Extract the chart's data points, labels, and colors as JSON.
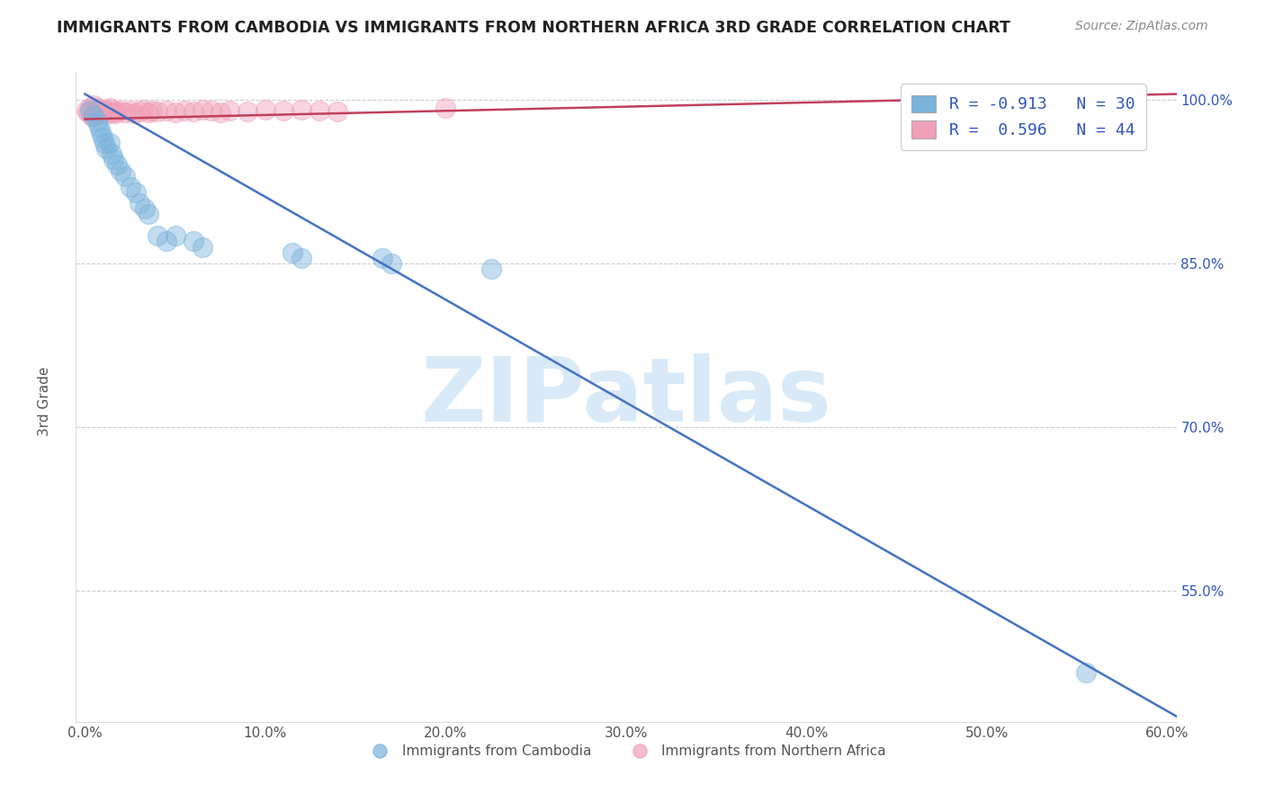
{
  "title": "IMMIGRANTS FROM CAMBODIA VS IMMIGRANTS FROM NORTHERN AFRICA 3RD GRADE CORRELATION CHART",
  "source_text": "Source: ZipAtlas.com",
  "ylabel": "3rd Grade",
  "watermark": "ZIPatlas",
  "xlim": [
    -0.005,
    0.605
  ],
  "ylim": [
    0.43,
    1.025
  ],
  "xtick_labels": [
    "0.0%",
    "10.0%",
    "20.0%",
    "30.0%",
    "40.0%",
    "50.0%",
    "60.0%"
  ],
  "xtick_values": [
    0.0,
    0.1,
    0.2,
    0.3,
    0.4,
    0.5,
    0.6
  ],
  "ytick_labels": [
    "55.0%",
    "70.0%",
    "85.0%",
    "100.0%"
  ],
  "ytick_values": [
    0.55,
    0.7,
    0.85,
    1.0
  ],
  "legend_entries": [
    {
      "label": "R = -0.913   N = 30",
      "color": "#a8c8e8"
    },
    {
      "label": "R =  0.596   N = 44",
      "color": "#f4b8c8"
    }
  ],
  "legend_bottom_labels": [
    "Immigrants from Cambodia",
    "Immigrants from Northern Africa"
  ],
  "blue_scatter_x": [
    0.003,
    0.005,
    0.007,
    0.008,
    0.009,
    0.01,
    0.011,
    0.012,
    0.014,
    0.015,
    0.016,
    0.018,
    0.02,
    0.022,
    0.025,
    0.028,
    0.03,
    0.033,
    0.035,
    0.04,
    0.045,
    0.05,
    0.06,
    0.065,
    0.115,
    0.12,
    0.165,
    0.17,
    0.225,
    0.555
  ],
  "blue_scatter_y": [
    0.99,
    0.985,
    0.98,
    0.975,
    0.97,
    0.965,
    0.96,
    0.955,
    0.96,
    0.95,
    0.945,
    0.94,
    0.935,
    0.93,
    0.92,
    0.915,
    0.905,
    0.9,
    0.895,
    0.875,
    0.87,
    0.875,
    0.87,
    0.865,
    0.86,
    0.855,
    0.855,
    0.85,
    0.845,
    0.475
  ],
  "pink_scatter_x": [
    0.001,
    0.002,
    0.003,
    0.004,
    0.005,
    0.005,
    0.006,
    0.007,
    0.008,
    0.009,
    0.01,
    0.011,
    0.012,
    0.013,
    0.014,
    0.015,
    0.016,
    0.017,
    0.018,
    0.02,
    0.022,
    0.025,
    0.027,
    0.03,
    0.032,
    0.035,
    0.037,
    0.04,
    0.045,
    0.05,
    0.055,
    0.06,
    0.065,
    0.07,
    0.075,
    0.08,
    0.09,
    0.1,
    0.11,
    0.12,
    0.13,
    0.14,
    0.2,
    0.48
  ],
  "pink_scatter_y": [
    0.99,
    0.988,
    0.992,
    0.985,
    0.99,
    0.995,
    0.988,
    0.992,
    0.987,
    0.99,
    0.988,
    0.991,
    0.99,
    0.987,
    0.992,
    0.988,
    0.99,
    0.987,
    0.989,
    0.99,
    0.988,
    0.99,
    0.987,
    0.989,
    0.991,
    0.988,
    0.99,
    0.989,
    0.99,
    0.988,
    0.99,
    0.989,
    0.991,
    0.99,
    0.988,
    0.99,
    0.989,
    0.991,
    0.99,
    0.991,
    0.99,
    0.989,
    0.992,
    0.993
  ],
  "blue_line_x": [
    0.0,
    0.605
  ],
  "blue_line_y": [
    1.005,
    0.435
  ],
  "pink_line_x": [
    0.0,
    0.605
  ],
  "pink_line_y": [
    0.982,
    1.005
  ],
  "blue_color": "#7ab3dc",
  "pink_color": "#f0a0b8",
  "blue_line_color": "#4472c4",
  "pink_line_color": "#c0405a",
  "background_color": "#ffffff",
  "grid_color": "#cccccc",
  "title_color": "#222222",
  "watermark_color": "#d8eaf8",
  "legend_text_color": "#3355bb"
}
